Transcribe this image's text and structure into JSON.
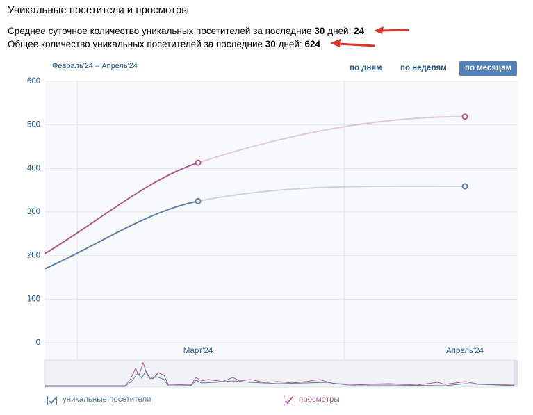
{
  "header": {
    "title": "Уникальные посетители и просмотры",
    "stats": [
      {
        "text": "Среднее суточное количество уникальных посетителей за последние",
        "days": 30,
        "unit": "дней:",
        "value": 24
      },
      {
        "text": "Общее количество уникальных посетителей за последние",
        "days": 30,
        "unit": "дней:",
        "value": 624
      }
    ]
  },
  "toolbar": {
    "range": "Февраль'24 – Апрель'24",
    "buttons": [
      "по дням",
      "по неделям",
      "по месяцам"
    ],
    "active": 2
  },
  "chart_data": {
    "type": "line",
    "categories": [
      null,
      "Март'24",
      "Апрель'24"
    ],
    "series": [
      {
        "name": "уникальные посетители",
        "color": "#5b7fa3",
        "values": [
          170,
          325,
          359
        ]
      },
      {
        "name": "просмотры",
        "color": "#b0578f",
        "values": [
          205,
          413,
          519
        ]
      }
    ],
    "ylim": [
      0,
      600
    ],
    "yticks": [
      0,
      100,
      200,
      300,
      400,
      500,
      600
    ],
    "grid": true
  }
}
